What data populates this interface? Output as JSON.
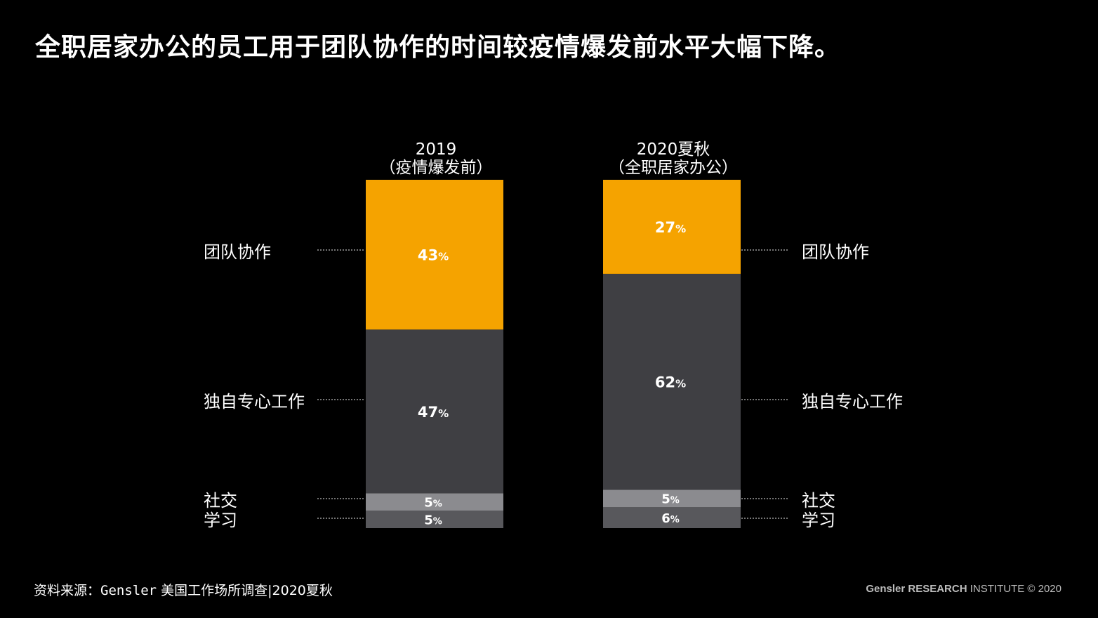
{
  "title": "全职居家办公的员工用于团队协作的时间较疫情爆发前水平大幅下降。",
  "source": {
    "prefix": "资料来源：",
    "org": "Gensler",
    "text": " 美国工作场所调查|2020夏秋"
  },
  "brand": {
    "bold": "Gensler RESEARCH",
    "rest": " INSTITUTE",
    "copyright": " © 2020"
  },
  "colors": {
    "collab": "#f5a300",
    "focus": "#3f3f43",
    "social": "#8b8b8f",
    "learn": "#58585c",
    "leader": "#bbbbbb"
  },
  "chart_data": {
    "type": "bar",
    "stacked": true,
    "percent": true,
    "categories": [
      [
        "2019",
        "（疫情爆发前）"
      ],
      [
        "2020夏秋",
        "（全职居家办公）"
      ]
    ],
    "series": [
      {
        "name": "学习",
        "values": [
          5,
          6
        ]
      },
      {
        "name": "社交",
        "values": [
          5,
          5
        ]
      },
      {
        "name": "独自专心工作",
        "values": [
          47,
          62
        ]
      },
      {
        "name": "团队协作",
        "values": [
          43,
          27
        ]
      }
    ],
    "value_suffix": "%"
  }
}
